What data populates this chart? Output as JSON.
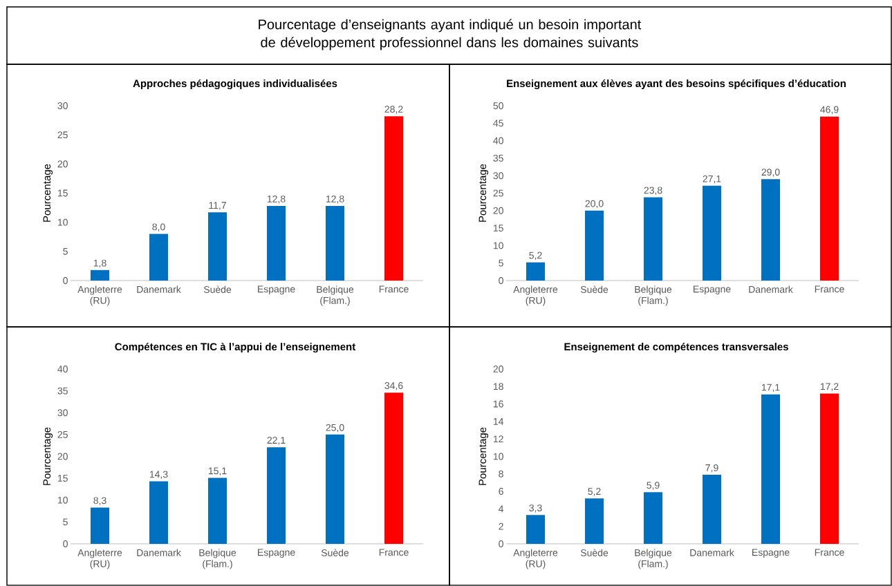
{
  "chart_data": [
    {
      "type": "other",
      "title": "Pourcentage d’enseignants ayant indiqué un besoin important de développement professionnel dans les domaines suivants"
    },
    {
      "type": "bar",
      "title": "Approches pédagogiques individualisées",
      "ylabel": "Pourcentage",
      "categories": [
        "Angleterre (RU)",
        "Danemark",
        "Suède",
        "Espagne",
        "Belgique (Flam.)",
        "France"
      ],
      "values": [
        1.8,
        8.0,
        11.7,
        12.8,
        12.8,
        28.2
      ],
      "value_labels": [
        "1,8",
        "8,0",
        "11,7",
        "12,8",
        "12,8",
        "28,2"
      ],
      "colors": [
        "#0070c0",
        "#0070c0",
        "#0070c0",
        "#0070c0",
        "#0070c0",
        "#ff0000"
      ],
      "ylim": [
        0,
        30
      ],
      "yticks": [
        0,
        5,
        10,
        15,
        20,
        25,
        30
      ]
    },
    {
      "type": "bar",
      "title": "Enseignement aux élèves ayant des besoins spécifiques d’éducation",
      "ylabel": "Pourcentage",
      "categories": [
        "Angleterre (RU)",
        "Suède",
        "Belgique (Flam.)",
        "Espagne",
        "Danemark",
        "France"
      ],
      "values": [
        5.2,
        20.0,
        23.8,
        27.1,
        29.0,
        46.9
      ],
      "value_labels": [
        "5,2",
        "20,0",
        "23,8",
        "27,1",
        "29,0",
        "46,9"
      ],
      "colors": [
        "#0070c0",
        "#0070c0",
        "#0070c0",
        "#0070c0",
        "#0070c0",
        "#ff0000"
      ],
      "ylim": [
        0,
        50
      ],
      "yticks": [
        0,
        5,
        10,
        15,
        20,
        25,
        30,
        35,
        40,
        45,
        50
      ]
    },
    {
      "type": "bar",
      "title": "Compétences en TIC à l’appui de l’enseignement",
      "ylabel": "Pourcentage",
      "categories": [
        "Angleterre (RU)",
        "Danemark",
        "Belgique (Flam.)",
        "Espagne",
        "Suède",
        "France"
      ],
      "values": [
        8.3,
        14.3,
        15.1,
        22.1,
        25.0,
        34.6
      ],
      "value_labels": [
        "8,3",
        "14,3",
        "15,1",
        "22,1",
        "25,0",
        "34,6"
      ],
      "colors": [
        "#0070c0",
        "#0070c0",
        "#0070c0",
        "#0070c0",
        "#0070c0",
        "#ff0000"
      ],
      "ylim": [
        0,
        40
      ],
      "yticks": [
        0,
        5,
        10,
        15,
        20,
        25,
        30,
        35,
        40
      ]
    },
    {
      "type": "bar",
      "title": "Enseignement de compétences transversales",
      "ylabel": "Pourcentage",
      "categories": [
        "Angleterre (RU)",
        "Suède",
        "Belgique (Flam.)",
        "Danemark",
        "Espagne",
        "France"
      ],
      "values": [
        3.3,
        5.2,
        5.9,
        7.9,
        17.1,
        17.2
      ],
      "value_labels": [
        "3,3",
        "5,2",
        "5,9",
        "7,9",
        "17,1",
        "17,2"
      ],
      "colors": [
        "#0070c0",
        "#0070c0",
        "#0070c0",
        "#0070c0",
        "#0070c0",
        "#ff0000"
      ],
      "ylim": [
        0,
        20
      ],
      "yticks": [
        0,
        2,
        4,
        6,
        8,
        10,
        12,
        14,
        16,
        18,
        20
      ]
    }
  ]
}
